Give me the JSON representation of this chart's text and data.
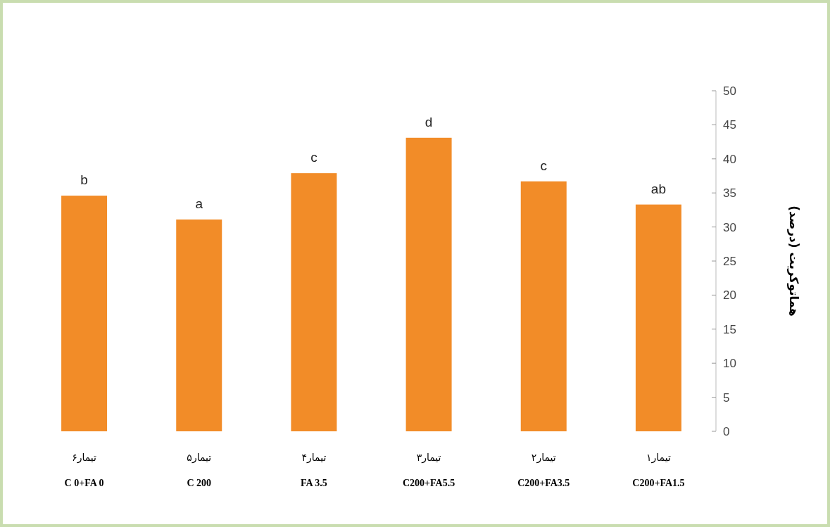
{
  "chart_data": {
    "type": "bar",
    "ylabel": "هماتوکریت (درصد)",
    "categories": [
      "تیمار۶",
      "تیمار۵",
      "تیمار۴",
      "تیمار۳",
      "تیمار۲",
      "تیمار۱"
    ],
    "values": [
      34.6,
      31.1,
      37.9,
      43.1,
      36.7,
      33.3
    ],
    "value_labels": [
      "b",
      "a",
      "c",
      "d",
      "c",
      "ab"
    ],
    "color": "#f28c28",
    "ylim": [
      0,
      50
    ],
    "yticks": [
      0,
      5,
      10,
      15,
      20,
      25,
      30,
      35,
      40,
      45,
      50
    ],
    "annotations": [
      "C 0+FA 0",
      "C 200",
      "FA 3.5",
      "C200+FA5.5",
      "C200+FA3.5",
      "C200+FA1.5"
    ]
  }
}
